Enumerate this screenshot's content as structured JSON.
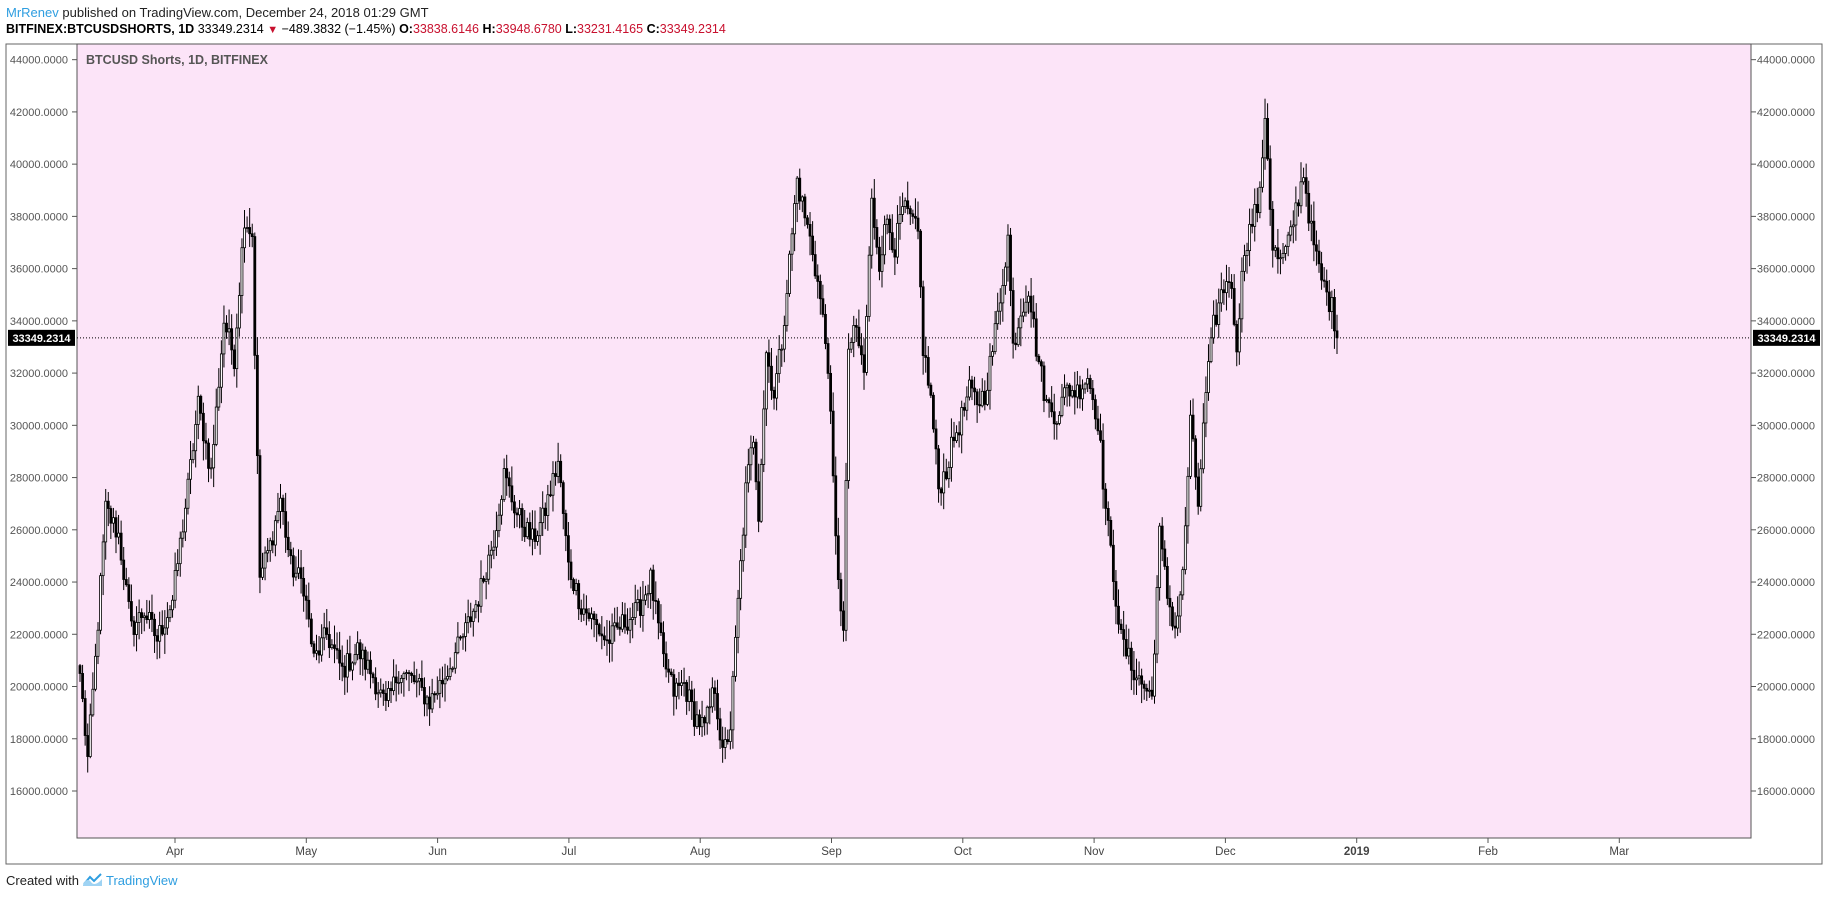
{
  "header": {
    "author": "MrRenev",
    "published_text": "published on TradingView.com, December 24, 2018 01:29 GMT",
    "symbol": "BITFINEX:BTCUSDSHORTS, 1D",
    "last": "33349.2314",
    "change": "−489.3832 (−1.45%)",
    "o_label": "O:",
    "o_value": "33838.6146",
    "h_label": "H:",
    "h_value": "33948.6780",
    "l_label": "L:",
    "l_value": "33231.4165",
    "c_label": "C:",
    "c_value": "33349.2314"
  },
  "footer": {
    "created_with": "Created with",
    "brand": "TradingView"
  },
  "colors": {
    "background": "#fce4f8",
    "candle_up": "#ffffff",
    "candle_down": "#000000",
    "accent": "#2f9ee0",
    "negative": "#c8102e"
  },
  "chart_data": {
    "type": "candlestick",
    "title": "BTCUSD Shorts, 1D, BITFINEX",
    "y_ticks": [
      "44000.0000",
      "42000.0000",
      "40000.0000",
      "38000.0000",
      "36000.0000",
      "34000.0000",
      "32000.0000",
      "30000.0000",
      "28000.0000",
      "26000.0000",
      "24000.0000",
      "22000.0000",
      "20000.0000",
      "18000.0000",
      "16000.0000"
    ],
    "ylim": [
      14200,
      44600
    ],
    "x_ticks": [
      "Apr",
      "May",
      "Jun",
      "Jul",
      "Aug",
      "Sep",
      "Oct",
      "Nov",
      "Dec",
      "2019",
      "Feb",
      "Mar"
    ],
    "current_price": "33349.2314",
    "grid": false,
    "series": [
      {
        "name": "BTCUSD Shorts",
        "close_path": [
          [
            0,
            20500
          ],
          [
            3,
            17200
          ],
          [
            6,
            21000
          ],
          [
            10,
            26800
          ],
          [
            15,
            25800
          ],
          [
            20,
            22200
          ],
          [
            25,
            22900
          ],
          [
            30,
            21800
          ],
          [
            36,
            23300
          ],
          [
            42,
            27600
          ],
          [
            46,
            30800
          ],
          [
            51,
            28200
          ],
          [
            56,
            34000
          ],
          [
            60,
            32600
          ],
          [
            64,
            38000
          ],
          [
            67,
            37300
          ],
          [
            70,
            24200
          ],
          [
            74,
            25400
          ],
          [
            78,
            27200
          ],
          [
            82,
            24600
          ],
          [
            87,
            23900
          ],
          [
            91,
            21000
          ],
          [
            96,
            22000
          ],
          [
            102,
            20600
          ],
          [
            108,
            21400
          ],
          [
            114,
            20400
          ],
          [
            119,
            19200
          ],
          [
            124,
            20600
          ],
          [
            130,
            20200
          ],
          [
            136,
            19400
          ],
          [
            142,
            20400
          ],
          [
            149,
            21900
          ],
          [
            155,
            23400
          ],
          [
            161,
            25700
          ],
          [
            165,
            28100
          ],
          [
            170,
            26600
          ],
          [
            176,
            25600
          ],
          [
            180,
            26400
          ],
          [
            186,
            28600
          ],
          [
            190,
            24600
          ],
          [
            195,
            23100
          ],
          [
            199,
            22600
          ],
          [
            205,
            21700
          ],
          [
            211,
            22400
          ],
          [
            217,
            22900
          ],
          [
            222,
            24100
          ],
          [
            227,
            21000
          ],
          [
            231,
            19800
          ],
          [
            235,
            20100
          ],
          [
            239,
            18900
          ],
          [
            243,
            18400
          ],
          [
            247,
            20000
          ],
          [
            250,
            17300
          ],
          [
            253,
            18500
          ],
          [
            256,
            23200
          ],
          [
            259,
            27500
          ],
          [
            262,
            29600
          ],
          [
            264,
            26700
          ],
          [
            267,
            32800
          ],
          [
            270,
            31200
          ],
          [
            273,
            33200
          ],
          [
            276,
            36300
          ],
          [
            279,
            39400
          ],
          [
            282,
            38000
          ],
          [
            285,
            36700
          ],
          [
            288,
            34800
          ],
          [
            291,
            32400
          ],
          [
            294,
            25500
          ],
          [
            297,
            22000
          ],
          [
            299,
            33000
          ],
          [
            302,
            33600
          ],
          [
            305,
            32000
          ],
          [
            308,
            38500
          ],
          [
            311,
            36300
          ],
          [
            314,
            37900
          ],
          [
            317,
            36800
          ],
          [
            320,
            38300
          ],
          [
            323,
            37900
          ],
          [
            326,
            37300
          ],
          [
            328,
            33000
          ],
          [
            331,
            31000
          ],
          [
            334,
            27600
          ],
          [
            337,
            28300
          ],
          [
            340,
            29500
          ],
          [
            343,
            30300
          ],
          [
            346,
            31300
          ],
          [
            349,
            30900
          ],
          [
            352,
            31200
          ],
          [
            355,
            32900
          ],
          [
            358,
            34900
          ],
          [
            361,
            37200
          ],
          [
            363,
            33000
          ],
          [
            366,
            34400
          ],
          [
            369,
            35300
          ],
          [
            372,
            33000
          ],
          [
            376,
            30800
          ],
          [
            380,
            30400
          ],
          [
            384,
            31400
          ],
          [
            388,
            31300
          ],
          [
            392,
            31900
          ],
          [
            396,
            30200
          ],
          [
            399,
            26800
          ],
          [
            402,
            24300
          ],
          [
            405,
            21800
          ],
          [
            409,
            20800
          ],
          [
            413,
            20100
          ],
          [
            417,
            19600
          ],
          [
            420,
            25800
          ],
          [
            423,
            23500
          ],
          [
            426,
            22200
          ],
          [
            429,
            24200
          ],
          [
            432,
            30100
          ],
          [
            435,
            27000
          ],
          [
            438,
            31200
          ],
          [
            441,
            33800
          ],
          [
            444,
            35000
          ],
          [
            447,
            35800
          ],
          [
            450,
            33200
          ],
          [
            453,
            36800
          ],
          [
            456,
            37800
          ],
          [
            459,
            38700
          ],
          [
            461,
            42000
          ],
          [
            464,
            36800
          ],
          [
            467,
            36200
          ],
          [
            470,
            36900
          ],
          [
            473,
            38300
          ],
          [
            476,
            39700
          ],
          [
            479,
            37400
          ],
          [
            482,
            35900
          ],
          [
            484,
            35300
          ],
          [
            487,
            34500
          ],
          [
            489,
            33349
          ]
        ]
      }
    ]
  }
}
